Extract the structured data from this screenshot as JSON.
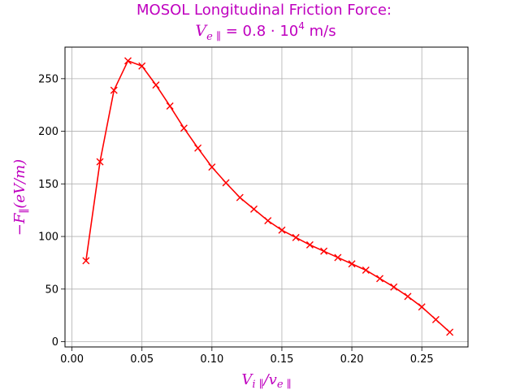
{
  "chart_data": {
    "type": "line",
    "title_line1": "MOSOL Longitudinal Friction Force:",
    "title_line2": "V",
    "title_line2_sub": "e ∥",
    "title_line2_rest": " = 0.8 · 10",
    "title_line2_sup": "4",
    "title_line2_unit": " m/s",
    "xlabel_main": "V",
    "xlabel_sub1": "i ∥",
    "xlabel_mid": "/v",
    "xlabel_sub2": "e ∥",
    "ylabel_main": "−F",
    "ylabel_sub": "∥",
    "ylabel_rest": "(eV/m)",
    "xlim": [
      -0.005,
      0.283
    ],
    "ylim": [
      -5,
      280
    ],
    "xticks": [
      0.0,
      0.05,
      0.1,
      0.15,
      0.2,
      0.25
    ],
    "xtick_labels": [
      "0.00",
      "0.05",
      "0.10",
      "0.15",
      "0.20",
      "0.25"
    ],
    "yticks": [
      0,
      50,
      100,
      150,
      200,
      250
    ],
    "ytick_labels": [
      "0",
      "50",
      "100",
      "150",
      "200",
      "250"
    ],
    "grid": true,
    "line_color": "#ff0000",
    "title_color": "#bf00bf",
    "marker": "x",
    "series": [
      {
        "x": [
          0.01,
          0.02,
          0.03,
          0.04,
          0.05,
          0.06,
          0.07,
          0.08,
          0.09,
          0.1,
          0.11,
          0.12,
          0.13,
          0.14,
          0.15,
          0.16,
          0.17,
          0.18,
          0.19,
          0.2,
          0.21,
          0.22,
          0.23,
          0.24,
          0.25,
          0.26,
          0.27
        ],
        "y": [
          77,
          171,
          239,
          267,
          262,
          244,
          224,
          203,
          184,
          166,
          151,
          137,
          126,
          115,
          106,
          99,
          92,
          86,
          80,
          74,
          68,
          60,
          52,
          43,
          33,
          21,
          9
        ]
      }
    ]
  }
}
